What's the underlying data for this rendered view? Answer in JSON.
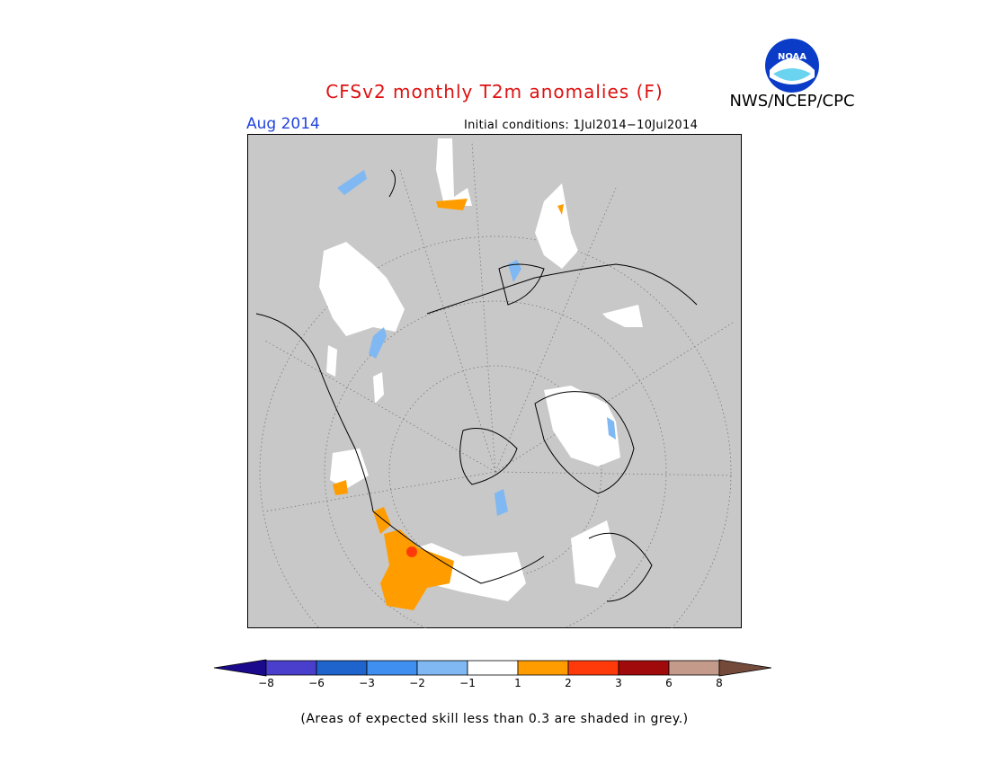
{
  "header": {
    "title": "CFSv2 monthly T2m anomalies (F)",
    "agency": "NWS/NCEP/CPC",
    "month": "Aug 2014",
    "initial_conditions": "Initial conditions: 1Jul2014−10Jul2014"
  },
  "logo": {
    "text": "NOAA",
    "icon": "noaa-logo-icon"
  },
  "colorbar": {
    "colors": [
      "#1c0a8c",
      "#4a3fcc",
      "#1f64cc",
      "#3f8ff0",
      "#7fb8f2",
      "#ffffff",
      "#ff9d00",
      "#ff3a0a",
      "#a00a0a",
      "#c49a8a",
      "#744a3a"
    ],
    "ticks": [
      "−8",
      "−6",
      "−3",
      "−2",
      "−1",
      "1",
      "2",
      "3",
      "6",
      "8"
    ]
  },
  "footnote": "(Areas of expected skill less than 0.3 are shaded in grey.)",
  "map": {
    "projection": "north-polar-stereographic",
    "background": "#c8c8c8",
    "skill_mask_color": "#c8c8c8"
  }
}
